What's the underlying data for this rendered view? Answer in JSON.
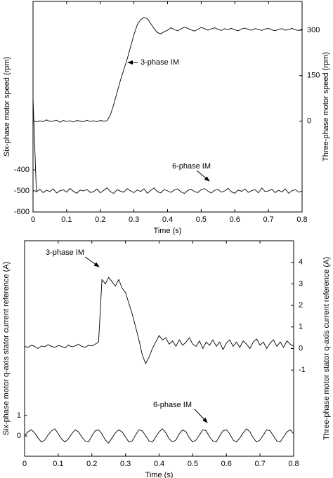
{
  "chart_data": [
    {
      "type": "line",
      "xlabel": "Time (s)",
      "ylabel": "Six-phase motor speed (rpm)",
      "y2label": "Three-phase motor speed (rpm)",
      "xlim": [
        0,
        0.8
      ],
      "xticks": [
        0,
        0.1,
        0.2,
        0.3,
        0.4,
        0.5,
        0.6,
        0.7,
        0.8
      ],
      "ylim": [
        -600,
        400
      ],
      "yticks": [
        -600,
        -500,
        -400
      ],
      "y2lim": [
        -300,
        395
      ],
      "y2ticks": [
        0,
        150,
        300
      ],
      "x": [
        0,
        0.01,
        0.02,
        0.03,
        0.04,
        0.05,
        0.06,
        0.07,
        0.08,
        0.09,
        0.1,
        0.11,
        0.12,
        0.13,
        0.14,
        0.15,
        0.16,
        0.17,
        0.18,
        0.19,
        0.2,
        0.21,
        0.22,
        0.23,
        0.24,
        0.25,
        0.26,
        0.27,
        0.28,
        0.29,
        0.3,
        0.31,
        0.32,
        0.33,
        0.34,
        0.35,
        0.36,
        0.37,
        0.38,
        0.39,
        0.4,
        0.41,
        0.42,
        0.43,
        0.44,
        0.45,
        0.46,
        0.47,
        0.48,
        0.49,
        0.5,
        0.51,
        0.52,
        0.53,
        0.54,
        0.55,
        0.56,
        0.57,
        0.58,
        0.59,
        0.6,
        0.61,
        0.62,
        0.63,
        0.64,
        0.65,
        0.66,
        0.67,
        0.68,
        0.69,
        0.7,
        0.71,
        0.72,
        0.73,
        0.74,
        0.75,
        0.76,
        0.77,
        0.78,
        0.79,
        0.8
      ],
      "series": [
        {
          "name": "3-phase IM",
          "color": "#000000",
          "axis": "y2",
          "values": [
            2,
            -3,
            1,
            -2,
            4,
            -1,
            0,
            3,
            -4,
            2,
            -1,
            1,
            -3,
            2,
            0,
            -2,
            3,
            -1,
            1,
            -2,
            2,
            0,
            1,
            20,
            55,
            95,
            135,
            170,
            205,
            245,
            285,
            318,
            335,
            342,
            338,
            322,
            305,
            292,
            288,
            295,
            300,
            308,
            302,
            298,
            304,
            310,
            306,
            301,
            297,
            303,
            309,
            305,
            300,
            304,
            308,
            303,
            299,
            305,
            302,
            306,
            301,
            298,
            304,
            307,
            302,
            300,
            305,
            303,
            299,
            304,
            306,
            301,
            298,
            303,
            305,
            300,
            302,
            306,
            301,
            299,
            303
          ]
        },
        {
          "name": "6-phase IM",
          "color": "#000000",
          "values": [
            -60,
            -505,
            -492,
            -508,
            -497,
            -503,
            -490,
            -510,
            -499,
            -495,
            -506,
            -488,
            -502,
            -511,
            -496,
            -500,
            -493,
            -507,
            -504,
            -491,
            -509,
            -498,
            -485,
            -503,
            -512,
            -494,
            -501,
            -506,
            -489,
            -500,
            -508,
            -495,
            -503,
            -490,
            -511,
            -497,
            -486,
            -504,
            -509,
            -493,
            -500,
            -507,
            -496,
            -490,
            -505,
            -512,
            -498,
            -492,
            -503,
            -508,
            -494,
            -489,
            -501,
            -510,
            -497,
            -493,
            -506,
            -500,
            -488,
            -504,
            -511,
            -496,
            -502,
            -491,
            -507,
            -499,
            -494,
            -509,
            -486,
            -503,
            -500,
            -492,
            -508,
            -497,
            -505,
            -490,
            -511,
            -499,
            -494,
            -506,
            -501
          ]
        }
      ],
      "annotations": [
        {
          "text": "3-phase IM"
        },
        {
          "text": "6-phase IM"
        }
      ]
    },
    {
      "type": "line",
      "xlabel": "Time (s)",
      "ylabel": "Six-phase motor q-axis stator current reference (A)",
      "y2label": "Three-phase motor stator q-axis current reference (A)",
      "xlim": [
        0,
        0.8
      ],
      "xticks": [
        0,
        0.1,
        0.2,
        0.3,
        0.4,
        0.5,
        0.6,
        0.7,
        0.8
      ],
      "ylim": [
        -1,
        9.6
      ],
      "yticks": [
        0,
        1
      ],
      "y2lim": [
        -5,
        5
      ],
      "y2ticks": [
        -1,
        0,
        1,
        2,
        3,
        4
      ],
      "x": [
        0,
        0.01,
        0.02,
        0.03,
        0.04,
        0.05,
        0.06,
        0.07,
        0.08,
        0.09,
        0.1,
        0.11,
        0.12,
        0.13,
        0.14,
        0.15,
        0.16,
        0.17,
        0.18,
        0.19,
        0.2,
        0.21,
        0.22,
        0.23,
        0.24,
        0.25,
        0.26,
        0.27,
        0.28,
        0.29,
        0.3,
        0.31,
        0.32,
        0.33,
        0.34,
        0.35,
        0.36,
        0.37,
        0.38,
        0.39,
        0.4,
        0.41,
        0.42,
        0.43,
        0.44,
        0.45,
        0.46,
        0.47,
        0.48,
        0.49,
        0.5,
        0.51,
        0.52,
        0.53,
        0.54,
        0.55,
        0.56,
        0.57,
        0.58,
        0.59,
        0.6,
        0.61,
        0.62,
        0.63,
        0.64,
        0.65,
        0.66,
        0.67,
        0.68,
        0.69,
        0.7,
        0.71,
        0.72,
        0.73,
        0.74,
        0.75,
        0.76,
        0.77,
        0.78,
        0.79,
        0.8
      ],
      "series": [
        {
          "name": "3-phase IM",
          "color": "#000000",
          "axis": "y2",
          "values": [
            0.1,
            0.05,
            0.15,
            0.1,
            0.0,
            0.12,
            0.08,
            0.18,
            0.1,
            0.05,
            0.14,
            0.1,
            0.02,
            0.16,
            0.08,
            0.12,
            0.2,
            0.1,
            0.05,
            0.15,
            0.12,
            0.2,
            0.3,
            3.2,
            3.0,
            3.3,
            3.1,
            2.9,
            3.2,
            2.8,
            2.6,
            2.1,
            1.6,
            1.0,
            0.4,
            -0.3,
            -0.7,
            -0.4,
            0.0,
            0.3,
            0.6,
            0.4,
            0.5,
            0.2,
            0.35,
            0.1,
            0.4,
            0.15,
            0.3,
            0.5,
            0.2,
            0.1,
            0.35,
            0.0,
            0.3,
            0.15,
            0.4,
            0.1,
            0.3,
            -0.05,
            0.25,
            0.4,
            0.1,
            0.3,
            0.05,
            0.35,
            0.2,
            0.0,
            0.3,
            0.45,
            0.15,
            0.3,
            0.0,
            0.25,
            0.4,
            0.1,
            0.3,
            0.05,
            0.35,
            0.2,
            0.1
          ]
        },
        {
          "name": "6-phase IM",
          "color": "#000000",
          "values": [
            0.0,
            0.2,
            0.3,
            0.15,
            -0.1,
            -0.3,
            -0.2,
            0.05,
            0.25,
            0.35,
            0.1,
            -0.15,
            -0.3,
            -0.15,
            0.1,
            0.3,
            0.2,
            -0.05,
            -0.25,
            -0.3,
            0.0,
            0.25,
            0.3,
            0.1,
            -0.2,
            -0.35,
            -0.1,
            0.15,
            0.3,
            0.2,
            -0.05,
            -0.3,
            -0.25,
            0.05,
            0.3,
            0.25,
            0.0,
            -0.25,
            -0.3,
            -0.05,
            0.2,
            0.35,
            0.15,
            -0.15,
            -0.3,
            -0.2,
            0.1,
            0.3,
            0.2,
            -0.1,
            -0.3,
            -0.2,
            0.05,
            0.3,
            0.25,
            -0.05,
            -0.25,
            -0.3,
            0.0,
            0.25,
            0.3,
            0.1,
            -0.2,
            -0.3,
            -0.1,
            0.15,
            0.35,
            0.2,
            -0.1,
            -0.3,
            -0.2,
            0.05,
            0.3,
            0.25,
            0.0,
            -0.25,
            -0.3,
            -0.05,
            0.2,
            0.3,
            0.1
          ]
        }
      ],
      "annotations": [
        {
          "text": "3-phase IM"
        },
        {
          "text": "6-phase IM"
        }
      ]
    }
  ]
}
